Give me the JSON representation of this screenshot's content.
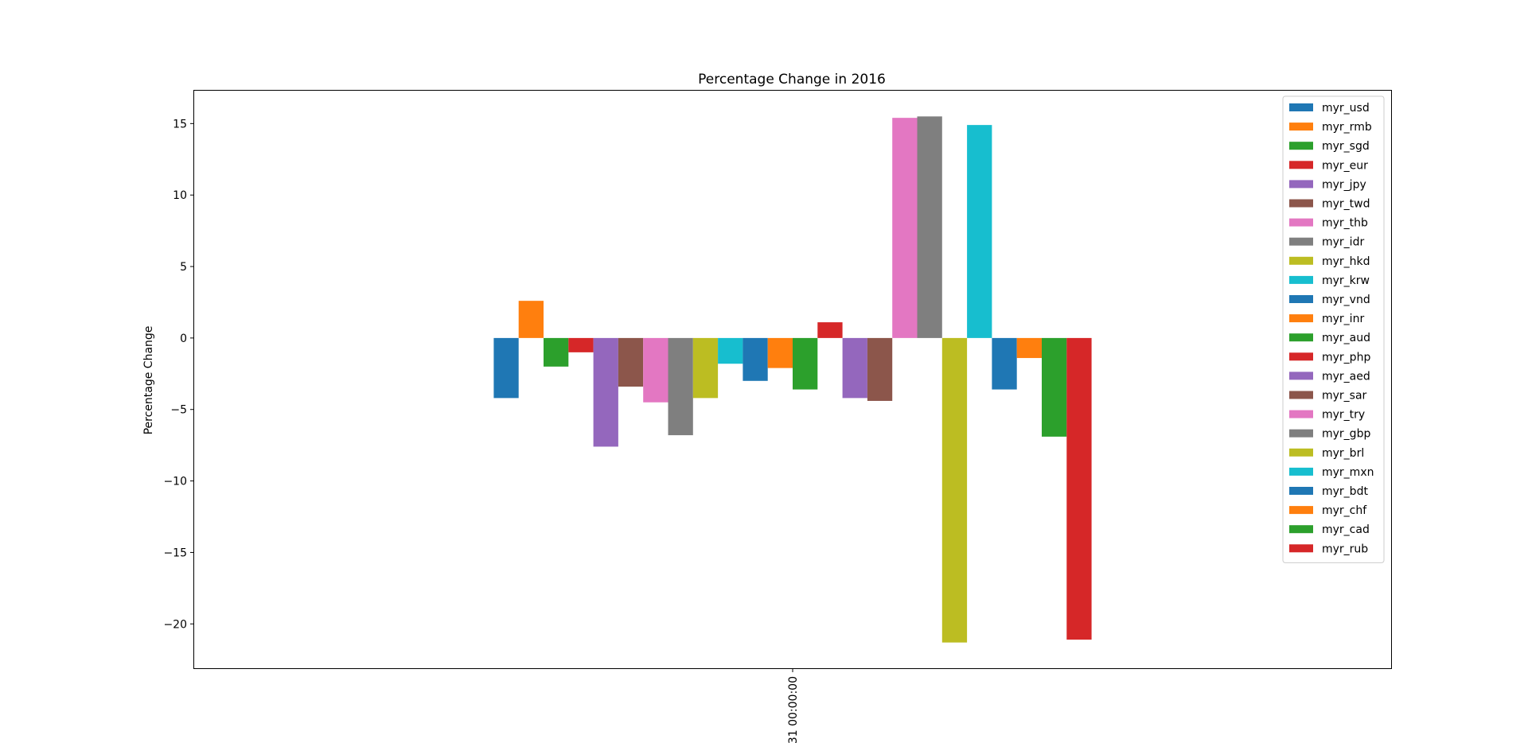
{
  "chart_data": {
    "type": "bar",
    "title": "Percentage Change in 2016",
    "xlabel": "",
    "ylabel": "Percentage Change",
    "categories": [
      "31 00:00:00"
    ],
    "ylim": [
      -23.1,
      17.3
    ],
    "yticks": [
      15,
      10,
      5,
      0,
      -5,
      -10,
      -15,
      -20
    ],
    "ytick_labels": [
      "15",
      "10",
      "5",
      "0",
      "−5",
      "−10",
      "−15",
      "−20"
    ],
    "grid": false,
    "legend_position": "top-right",
    "series": [
      {
        "name": "myr_usd",
        "color": "#1f77b4",
        "values": [
          -4.2
        ]
      },
      {
        "name": "myr_rmb",
        "color": "#ff7f0e",
        "values": [
          2.6
        ]
      },
      {
        "name": "myr_sgd",
        "color": "#2ca02c",
        "values": [
          -2.0
        ]
      },
      {
        "name": "myr_eur",
        "color": "#d62728",
        "values": [
          -1.0
        ]
      },
      {
        "name": "myr_jpy",
        "color": "#9467bd",
        "values": [
          -7.6
        ]
      },
      {
        "name": "myr_twd",
        "color": "#8c564b",
        "values": [
          -3.4
        ]
      },
      {
        "name": "myr_thb",
        "color": "#e377c2",
        "values": [
          -4.5
        ]
      },
      {
        "name": "myr_idr",
        "color": "#7f7f7f",
        "values": [
          -6.8
        ]
      },
      {
        "name": "myr_hkd",
        "color": "#bcbd22",
        "values": [
          -4.2
        ]
      },
      {
        "name": "myr_krw",
        "color": "#17becf",
        "values": [
          -1.8
        ]
      },
      {
        "name": "myr_vnd",
        "color": "#1f77b4",
        "values": [
          -3.0
        ]
      },
      {
        "name": "myr_inr",
        "color": "#ff7f0e",
        "values": [
          -2.1
        ]
      },
      {
        "name": "myr_aud",
        "color": "#2ca02c",
        "values": [
          -3.6
        ]
      },
      {
        "name": "myr_php",
        "color": "#d62728",
        "values": [
          1.1
        ]
      },
      {
        "name": "myr_aed",
        "color": "#9467bd",
        "values": [
          -4.2
        ]
      },
      {
        "name": "myr_sar",
        "color": "#8c564b",
        "values": [
          -4.4
        ]
      },
      {
        "name": "myr_try",
        "color": "#e377c2",
        "values": [
          15.4
        ]
      },
      {
        "name": "myr_gbp",
        "color": "#7f7f7f",
        "values": [
          15.5
        ]
      },
      {
        "name": "myr_brl",
        "color": "#bcbd22",
        "values": [
          -21.3
        ]
      },
      {
        "name": "myr_mxn",
        "color": "#17becf",
        "values": [
          14.9
        ]
      },
      {
        "name": "myr_bdt",
        "color": "#1f77b4",
        "values": [
          -3.6
        ]
      },
      {
        "name": "myr_chf",
        "color": "#ff7f0e",
        "values": [
          -1.4
        ]
      },
      {
        "name": "myr_cad",
        "color": "#2ca02c",
        "values": [
          -6.9
        ]
      },
      {
        "name": "myr_rub",
        "color": "#d62728",
        "values": [
          -21.1
        ]
      }
    ]
  }
}
